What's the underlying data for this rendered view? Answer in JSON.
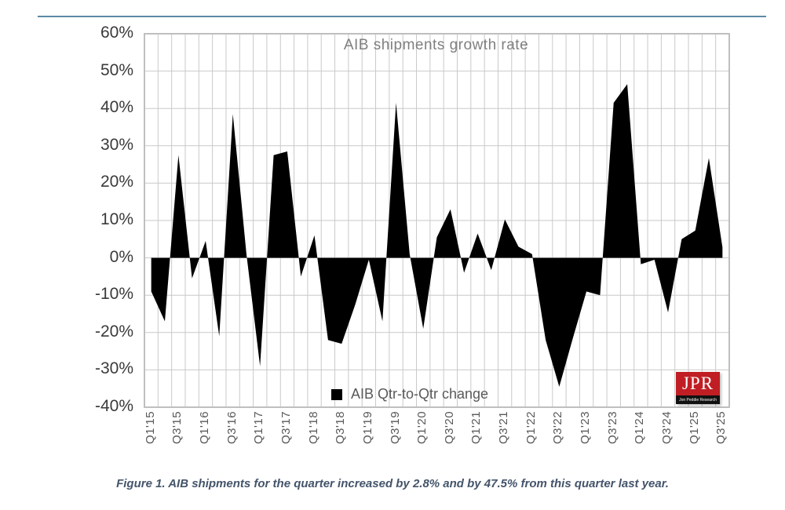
{
  "page": {
    "caption": "Figure 1. AIB shipments for the quarter increased by 2.8% and by 47.5% from this quarter last year."
  },
  "chart": {
    "title": "AIB shipments growth rate",
    "legend_label": "AIB Qtr-to-Qtr change",
    "logo_text": "JPR",
    "logo_subtext": "Jon Peddie Research",
    "colors": {
      "area": "#000000",
      "grid": "#c9c9c9",
      "plot_border": "#bfbfbf",
      "title_text": "#7f7f7f",
      "y_label_text": "#3a3a3a",
      "x_label_text": "#595959",
      "legend_text": "#595959",
      "caption_text": "#44546a",
      "top_rule": "#5b8aa6",
      "logo_red": "#c01e24",
      "logo_black": "#111111"
    }
  },
  "chart_data": {
    "type": "area",
    "title": "AIB shipments growth rate",
    "legend": [
      "AIB Qtr-to-Qtr change"
    ],
    "legend_position": "bottom-center-inside",
    "grid": true,
    "ylim": [
      -40,
      60
    ],
    "ytick_step": 10,
    "ytick_labels": [
      "60%",
      "50%",
      "40%",
      "30%",
      "20%",
      "10%",
      "0%",
      "-10%",
      "-20%",
      "-30%",
      "-40%"
    ],
    "x_tick_labels_shown_every": 2,
    "categories": [
      "Q1'15",
      "Q2'15",
      "Q3'15",
      "Q4'15",
      "Q1'16",
      "Q2'16",
      "Q3'16",
      "Q4'16",
      "Q1'17",
      "Q2'17",
      "Q3'17",
      "Q4'17",
      "Q1'18",
      "Q2'18",
      "Q3'18",
      "Q4'18",
      "Q1'19",
      "Q2'19",
      "Q3'19",
      "Q4'19",
      "Q1'20",
      "Q2'20",
      "Q3'20",
      "Q4'20",
      "Q1'21",
      "Q2'21",
      "Q3'21",
      "Q4'21",
      "Q1'22",
      "Q2'22",
      "Q3'22",
      "Q4'22",
      "Q1'23",
      "Q2'23",
      "Q3'23",
      "Q4'23",
      "Q1'24",
      "Q2'24",
      "Q3'24",
      "Q4'24",
      "Q1'25",
      "Q2'25",
      "Q3'25"
    ],
    "series": [
      {
        "name": "AIB Qtr-to-Qtr change",
        "values": [
          -9,
          -17,
          27.5,
          -5.5,
          4.5,
          -21,
          38.5,
          1,
          -29,
          27.5,
          28.5,
          -5,
          6,
          -22,
          -23,
          -12.5,
          -0.5,
          -17,
          41.5,
          1,
          -19,
          5.5,
          13,
          -4,
          6.5,
          -3.3,
          10.3,
          3,
          1,
          -22,
          -34.5,
          -21.5,
          -9,
          -10,
          41.5,
          46.5,
          -1.7,
          -0.5,
          -14.6,
          5,
          7.3,
          26.7,
          2.8
        ]
      }
    ]
  }
}
